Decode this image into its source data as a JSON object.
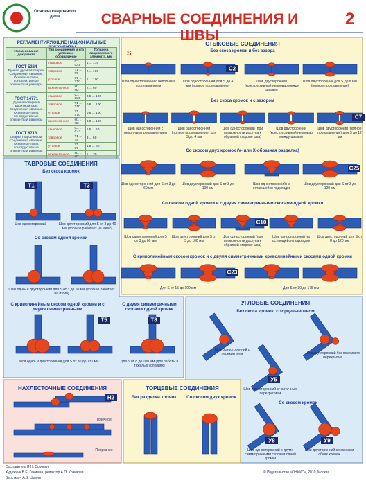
{
  "header": {
    "series": "Основы сварочного дела",
    "title": "СВАРНЫЕ СОЕДИНЕНИЯ И ШВЫ",
    "page": "2"
  },
  "documents": {
    "title": "РЕГЛАМЕНТИРУЮЩИЕ НАЦИОНАЛЬНЫЕ ДОКУМЕНТЫ",
    "columns": [
      "Наименование документа",
      "Тип соединения и его условное обозначение",
      "Толщина свариваемого элемента, мм"
    ],
    "rows": [
      {
        "gost": "ГОСТ 5264",
        "description": "Ручная дуговая сварка. Соединения сварные. Основные типы, конструктивные элементы и размеры",
        "joints": [
          [
            "стыковое",
            "С1 ... С45",
            "1 ... 175"
          ],
          [
            "тавровое",
            "Т1 ... Т9",
            "2 ... 100"
          ],
          [
            "угловое",
            "У1 ... У10",
            "1 ... 100"
          ],
          [
            "нахлесточное",
            "Н1 ... Н2",
            "2 ... 60"
          ]
        ]
      },
      {
        "gost": "ГОСТ 14771",
        "description": "Дуговая сварка в защитном газе. Соединения сварные. Основные типы, конструктивные элементы и размеры",
        "joints": [
          [
            "стыковое",
            "С1 ... С28",
            "0,5 ... 120"
          ],
          [
            "тавровое",
            "Т1 ... Т10",
            "0,8 ... 100"
          ],
          [
            "угловое",
            "У1 ... У10",
            "0,8 ... 100"
          ],
          [
            "нахлесточное",
            "Н1 ... Н2",
            "0,8 ... 100"
          ]
        ]
      },
      {
        "gost": "ГОСТ 8713",
        "description": "Сварка под флюсом. Соединения сварные. Основные типы, конструктивные элементы и размеры",
        "joints": [
          [
            "стыковое",
            "С1 ... С47",
            "1,5 ... 60"
          ],
          [
            "тавровое",
            "Т1 ... Т8",
            "3 ... 60"
          ],
          [
            "угловое",
            "У1 ... У7",
            "1,5 ... 60"
          ],
          [
            "нахлесточное",
            "Н1 ... Н2",
            "1 ... 20"
          ]
        ]
      }
    ]
  },
  "butt": {
    "title": "СТЫКОВЫЕ СОЕДИНЕНИЯ",
    "thickness_mark": "S",
    "sections": [
      {
        "title": "Без скоса кромок и без зазора",
        "label": "С2",
        "captions": [
          "Шов односторонний с неполным проплавлением",
          "Шов односторонний для S до 4 мм (полное проплавление)",
          "Шов двусторонний (конструктивный непровар между швами)",
          "Шов двусторонний для S до 8 мм (полное проплавление)"
        ]
      },
      {
        "title": "Без скоса кромок и с зазором",
        "label": "С7",
        "captions": [
          "Шов односторонний с неполным проплавлением",
          "Шов односторонний (полное проплавление) для S до 4 мм",
          "Шов односторонний (при возможности доступа к обратной стороне шва)",
          "Шов двусторонний (конструктивный непровар между швами)",
          "Шов двусторонний (полное проплавление) для S до 12 мм"
        ]
      },
      {
        "title": "Со скосом двух кромок (V- или X-образная разделка)",
        "label": "С25",
        "captions": [
          "Шов односторонний для S от 3 до 60 мм",
          "Шов двусторонний для S от 3 до 100 мм",
          "Шов односторонний на остающейся подкладке",
          "Шов двусторонний для S от 3 до 120 мм"
        ]
      },
      {
        "title": "Со скосом одной кромки и с двумя симметричными скосами одной кромки",
        "label": "С10",
        "captions": [
          "Шов односторонний для S от 3 до 60 мм",
          "Шов двусторонний для S от 3 до 100 мм",
          "Шов односторонний (при возможности доступа к обратной стороне шва)",
          "Шов односторонний на остающейся подкладке",
          "Шов двусторонний для S от 8 до 120 мм"
        ]
      },
      {
        "title": "С криволинейным скосом кромок и с двумя симметричными криволинейными скосами одной кромки",
        "label": "С23",
        "captions": [
          "Для S от 15 до 100 мм",
          "Для S от 30 до 175 мм"
        ]
      }
    ]
  },
  "tee": {
    "title": "ТАВРОВЫЕ СОЕДИНЕНИЯ",
    "no_bevel": "Без скоса кромок",
    "labels": [
      "Т1",
      "Т3",
      "Т5",
      "Т8"
    ],
    "captions": [
      "Шов односторонний",
      "Шов двусторонний для S от 3 до 40 мм (хорошо работает на изгиб)"
    ],
    "one_bevel": "Со скосом одной кромки",
    "one_bevel_caption": "Швы одно- и двусторонний для S от 3 до 60 мм (хорошо работает на изгиб)",
    "curved": "С криволинейным скосом одной кромки и с двумя симметричными",
    "curved_caption": "Шов одно- и двусторонний для S от 30 до 130 мм",
    "double": "С двумя симметричными скосами одной кромки",
    "double_caption": "Для S от 8 до 100 мм (для работы в тяжелых условиях)"
  },
  "corner": {
    "title": "УГЛОВЫЕ СОЕДИНЕНИЯ",
    "no_bevel": "Без скоса кромок, с торцевым швом",
    "captions": [
      "Шов односторонний с перекрытием",
      "Шов двусторонний без взаимного перекрытия",
      "Шов односторонний с частичным перекрытием"
    ],
    "bevel": "Со скосом кромок",
    "bevel_captions": [
      "Шов односторонний с двумя симметричными скосами одной кромки",
      "Шов двусторонний со скосами обеих кромок"
    ],
    "labels": [
      "У5",
      "У8",
      "У9"
    ]
  },
  "lap": {
    "title": "НАХЛЕСТОЧНЫЕ СОЕДИНЕНИЯ",
    "label": "Н2",
    "spot": "Точечное",
    "slot": "Прорезное"
  },
  "edge": {
    "title": "ТОРЦЕВЫЕ СОЕДИНЕНИЯ",
    "no_bevel": "Без разделки кромок",
    "bevel": "Со скосом двух кромок"
  },
  "footer": {
    "credits": [
      "Составитель В.Н. Сорокин",
      "Художник В.Е. Ганиман, редактор А.О. Кочкарев",
      "Верстка – А.В. Цыпин"
    ],
    "publisher": "© Издательство «ОНИКС», 2010, Москва"
  }
}
